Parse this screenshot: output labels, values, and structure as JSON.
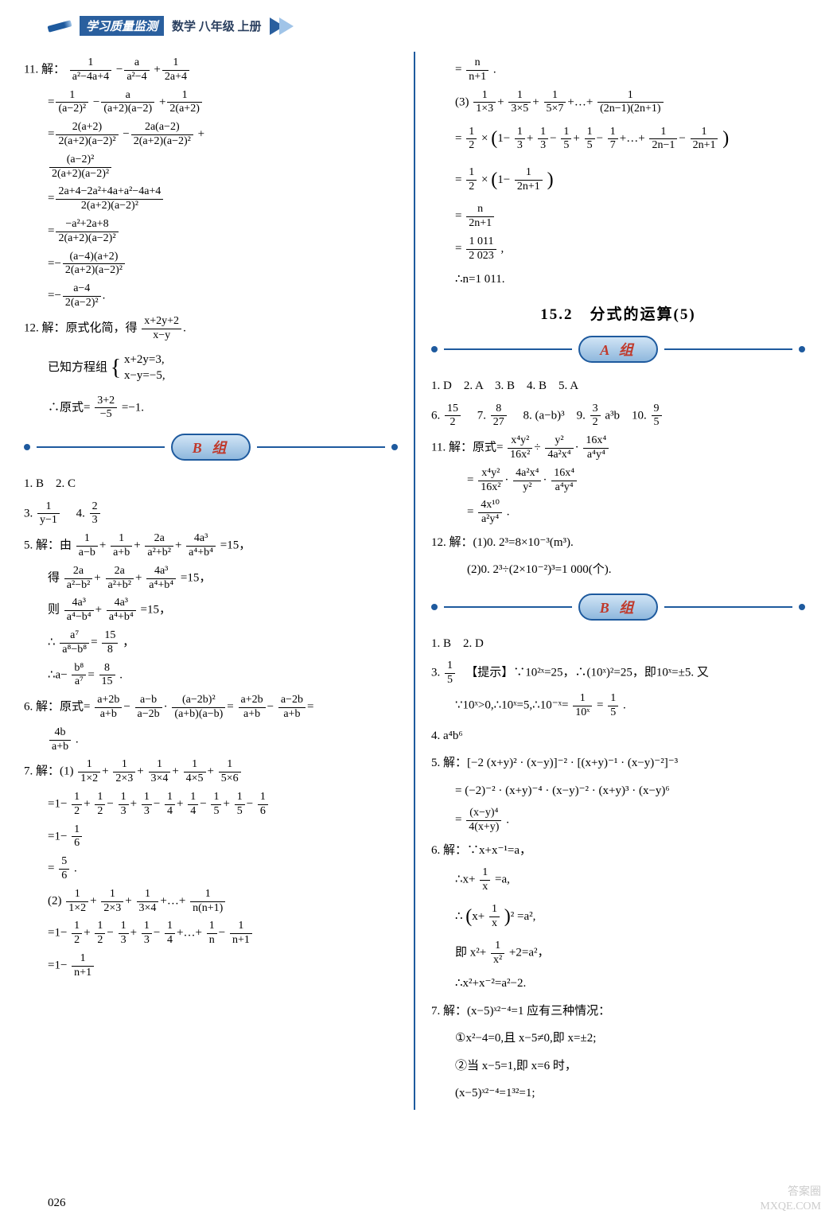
{
  "header": {
    "badge": "学习质量监测",
    "subject": "数学 八年级 上册"
  },
  "leftCol": {
    "p11_lead": "11. 解：",
    "p11_l1_a": "1",
    "p11_l1_b": "a²−4a+4",
    "p11_l1_c": "a",
    "p11_l1_d": "a²−4",
    "p11_l1_e": "1",
    "p11_l1_f": "2a+4",
    "p11_l2_a": "1",
    "p11_l2_b": "(a−2)²",
    "p11_l2_c": "a",
    "p11_l2_d": "(a+2)(a−2)",
    "p11_l2_e": "1",
    "p11_l2_f": "2(a+2)",
    "p11_l3_a": "2(a+2)",
    "p11_l3_b": "2(a+2)(a−2)²",
    "p11_l3_c": "2a(a−2)",
    "p11_l3_d": "2(a+2)(a−2)²",
    "p11_l4_a": "(a−2)²",
    "p11_l4_b": "2(a+2)(a−2)²",
    "p11_l5_a": "2a+4−2a²+4a+a²−4a+4",
    "p11_l5_b": "2(a+2)(a−2)²",
    "p11_l6_a": "−a²+2a+8",
    "p11_l6_b": "2(a+2)(a−2)²",
    "p11_l7_a": "(a−4)(a+2)",
    "p11_l7_b": "2(a+2)(a−2)²",
    "p11_l8_a": "a−4",
    "p11_l8_b": "2(a−2)²",
    "p12_lead": "12. 解：原式化简，得",
    "p12_f1a": "x+2y+2",
    "p12_f1b": "x−y",
    "p12_l2": "已知方程组",
    "p12_eq1": "x+2y=3,",
    "p12_eq2": "x−y=−5,",
    "p12_l3a": "∴原式=",
    "p12_l3_n": "3+2",
    "p12_l3_d": "−5",
    "p12_l3b": "=−1.",
    "groupB": "B 组",
    "b_q1": "1. B　2. C",
    "b_q3a": "3.",
    "b_q3n": "1",
    "b_q3d": "y−1",
    "b_q4a": "　4.",
    "b_q4n": "2",
    "b_q4d": "3",
    "b_q5_lead": "5. 解：由",
    "b5_1a": "1",
    "b5_1b": "a−b",
    "b5_1c": "1",
    "b5_1d": "a+b",
    "b5_1e": "2a",
    "b5_1f": "a²+b²",
    "b5_1g": "4a³",
    "b5_1h": "a⁴+b⁴",
    "b5_tail": "=15，",
    "b5_2lead": "得",
    "b5_2a": "2a",
    "b5_2b": "a²−b²",
    "b5_2c": "2a",
    "b5_2d": "a²+b²",
    "b5_2e": "4a³",
    "b5_2f": "a⁴+b⁴",
    "b5_2tail": "=15，",
    "b5_3lead": "则",
    "b5_3a": "4a³",
    "b5_3b": "a⁴−b⁴",
    "b5_3c": "4a³",
    "b5_3d": "a⁴+b⁴",
    "b5_3tail": "=15，",
    "b5_4a": "∴",
    "b5_4n": "a⁷",
    "b5_4d": "a⁸−b⁸",
    "b5_4e": "15",
    "b5_4f": "8",
    "b5_4tail": "，",
    "b5_5a": "∴a−",
    "b5_5n": "b⁸",
    "b5_5d": "a⁷",
    "b5_5e": "8",
    "b5_5f": "15",
    "b5_5tail": ".",
    "b_q6_lead": "6. 解：原式=",
    "b6_1a": "a+2b",
    "b6_1b": "a+b",
    "b6_1c": "a−b",
    "b6_1d": "a−2b",
    "b6_1e": "(a−2b)²",
    "b6_1f": "(a+b)(a−b)",
    "b6_1g": "a+2b",
    "b6_1h": "a+b",
    "b6_1i": "a−2b",
    "b6_1j": "a+b",
    "b6_2a": "4b",
    "b6_2b": "a+b",
    "b6_2tail": ".",
    "b_q7_lead": "7. 解：(1)",
    "b7_1a": "1",
    "b7_1b": "1×2",
    "b7_1c": "1",
    "b7_1d": "2×3",
    "b7_1e": "1",
    "b7_1f": "3×4",
    "b7_1g": "1",
    "b7_1h": "4×5",
    "b7_1i": "1",
    "b7_1j": "5×6",
    "b7_2": "=1−",
    "b7_2a": "1",
    "b7_2b": "2",
    "b7_2c": "1",
    "b7_2d": "2",
    "b7_2e": "1",
    "b7_2f": "3",
    "b7_2g": "1",
    "b7_2h": "3",
    "b7_2i": "1",
    "b7_2j": "4",
    "b7_2k": "1",
    "b7_2l": "4",
    "b7_2m": "1",
    "b7_2n": "5",
    "b7_2o": "1",
    "b7_2p": "5",
    "b7_2q": "1",
    "b7_2r": "6",
    "b7_3": "=1−",
    "b7_3a": "1",
    "b7_3b": "6",
    "b7_4": "=",
    "b7_4a": "5",
    "b7_4b": "6",
    "b7_4tail": ".",
    "b7_p2_lead": "(2)",
    "b7p2_a": "1",
    "b7p2_b": "1×2",
    "b7p2_c": "1",
    "b7p2_d": "2×3",
    "b7p2_e": "1",
    "b7p2_f": "3×4",
    "b7p2_g": "1",
    "b7p2_h": "n(n+1)",
    "b7p2_2": "=1−",
    "b7p2_2a": "1",
    "b7p2_2b": "2",
    "b7p2_2c": "1",
    "b7p2_2d": "2",
    "b7p2_2e": "1",
    "b7p2_2f": "3",
    "b7p2_2g": "1",
    "b7p2_2h": "3",
    "b7p2_2i": "1",
    "b7p2_2j": "4",
    "b7p2_2k": "1",
    "b7p2_2l": "n",
    "b7p2_2m": "1",
    "b7p2_2n": "n+1",
    "b7p2_3": "=1−",
    "b7p2_3a": "1",
    "b7p2_3b": "n+1"
  },
  "rightCol": {
    "r1": "=",
    "r1a": "n",
    "r1b": "n+1",
    "r1tail": ".",
    "r_p3_lead": "(3)",
    "r3_a": "1",
    "r3_b": "1×3",
    "r3_c": "1",
    "r3_d": "3×5",
    "r3_e": "1",
    "r3_f": "5×7",
    "r3_g": "1",
    "r3_h": "(2n−1)(2n+1)",
    "r3_2a": "=",
    "r3_2b": "1",
    "r3_2c": "2",
    "r3_2d": "×",
    "r3_2inner_a": "1−",
    "r3_2e": "1",
    "r3_2f": "3",
    "r3_2g": "1",
    "r3_2h": "3",
    "r3_2i": "1",
    "r3_2j": "5",
    "r3_2k": "1",
    "r3_2l": "5",
    "r3_2m": "1",
    "r3_2n": "7",
    "r3_2o": "1",
    "r3_2p": "2n−1",
    "r3_2q": "1",
    "r3_2r": "2n+1",
    "r3_3a": "=",
    "r3_3b": "1",
    "r3_3c": "2",
    "r3_3d": "×",
    "r3_3inner": "1−",
    "r3_3e": "1",
    "r3_3f": "2n+1",
    "r3_4": "=",
    "r3_4a": "n",
    "r3_4b": "2n+1",
    "r3_5": "=",
    "r3_5a": "1 011",
    "r3_5b": "2 023",
    "r3_5tail": ",",
    "r3_6": "∴n=1 011.",
    "section_title": "15.2　分式的运算(5)",
    "groupA": "A 组",
    "a_q1": "1. D　2. A　3. B　4. B　5. A",
    "a_q6a": "6.",
    "a_q6n": "15",
    "a_q6d": "2",
    "a_q7a": "　7.",
    "a_q7n": "8",
    "a_q7d": "27",
    "a_q8": "　8. (a−b)³　9.",
    "a_q9n": "3",
    "a_q9d": "2",
    "a_q9tail": "a³b　10.",
    "a_q10n": "9",
    "a_q10d": "5",
    "a_q11_lead": "11. 解：原式=",
    "a11_1a": "x⁴y²",
    "a11_1b": "16x²",
    "a11_1c": "y²",
    "a11_1d": "4a²x⁴",
    "a11_1e": "16x⁴",
    "a11_1f": "a⁴y⁴",
    "a11_2": "=",
    "a11_2a": "x⁴y²",
    "a11_2b": "16x²",
    "a11_2c": "4a²x⁴",
    "a11_2d": "y²",
    "a11_2e": "16x⁴",
    "a11_2f": "a⁴y⁴",
    "a11_3": "=",
    "a11_3a": "4x¹⁰",
    "a11_3b": "a²y⁴",
    "a11_3tail": ".",
    "a_q12_1": "12. 解：(1)0. 2³=8×10⁻³(m³).",
    "a_q12_2": "(2)0. 2³÷(2×10⁻²)³=1 000(个).",
    "groupB2": "B 组",
    "rb_q1": "1. B　2. D",
    "rb_q3a": "3.",
    "rb_q3n": "1",
    "rb_q3d": "5",
    "rb_q3_hint": "　【提示】∵10²ˣ=25，∴(10ˣ)²=25，即10ˣ=±5. 又",
    "rb_q3_l2a": "∵10ˣ>0,∴10ˣ=5,∴10⁻ˣ=",
    "rb_q3_l2n": "1",
    "rb_q3_l2d": "10ˣ",
    "rb_q3_l2eq": "=",
    "rb_q3_l2n2": "1",
    "rb_q3_l2d2": "5",
    "rb_q3_l2tail": ".",
    "rb_q4": "4. a⁴b⁶",
    "rb_q5_lead": "5. 解：[−2 (x+y)² · (x−y)]⁻² · [(x+y)⁻¹ · (x−y)⁻²]⁻³",
    "rb_q5_2": "= (−2)⁻² · (x+y)⁻⁴ · (x−y)⁻² · (x+y)³ · (x−y)⁶",
    "rb_q5_3": "=",
    "rb_q5_3a": "(x−y)⁴",
    "rb_q5_3b": "4(x+y)",
    "rb_q5_3tail": ".",
    "rb_q6_lead": "6. 解：∵x+x⁻¹=a，",
    "rb_q6_2": "∴x+",
    "rb_q6_2a": "1",
    "rb_q6_2b": "x",
    "rb_q6_2tail": "=a,",
    "rb_q6_3a": "∴",
    "rb_q6_3b": "x+",
    "rb_q6_3c": "1",
    "rb_q6_3d": "x",
    "rb_q6_3tail": "=a²,",
    "rb_q6_4": "即 x²+",
    "rb_q6_4a": "1",
    "rb_q6_4b": "x²",
    "rb_q6_4tail": "+2=a²，",
    "rb_q6_5": "∴x²+x⁻²=a²−2.",
    "rb_q7_lead": "7. 解：(x−5)ˣ²⁻⁴=1 应有三种情况：",
    "rb_q7_1": "①x²−4=0,且 x−5≠0,即 x=±2;",
    "rb_q7_2": "②当 x−5=1,即 x=6 时，",
    "rb_q7_3": "(x−5)ˣ²⁻⁴=1³²=1;"
  },
  "pagenum": "026",
  "watermark1": "答案圈",
  "watermark2": "MXQE.COM"
}
